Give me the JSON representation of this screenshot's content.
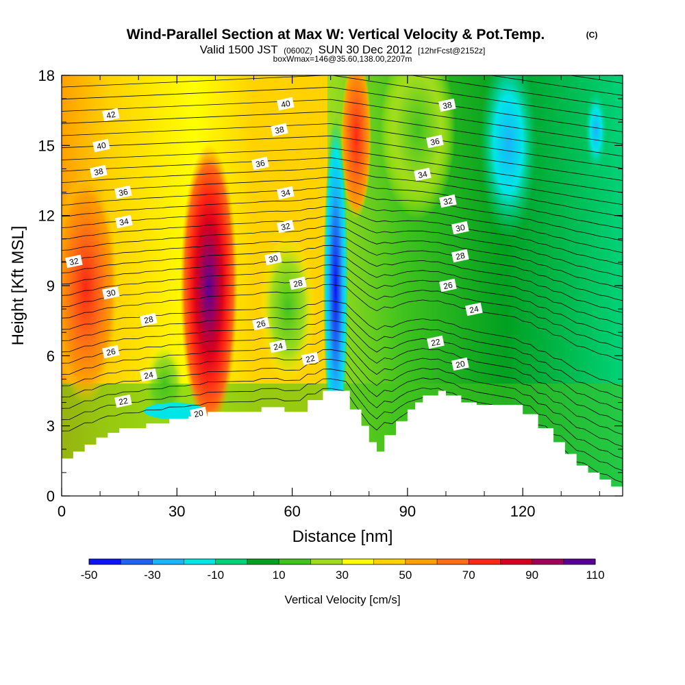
{
  "chart_data": {
    "type": "heatmap",
    "title": "Wind-Parallel Section at Max W: Vertical Velocity & Pot.Temp.",
    "title_tag": "(C)",
    "subtitle_valid": "Valid 1500 JST",
    "subtitle_utc": "(0600Z)",
    "subtitle_date": "SUN 30 Dec 2012",
    "subtitle_fcst": "[12hrFcst@2152z]",
    "subtitle_box": "boxWmax=146@35.60,138.00,2207m",
    "xlabel": "Distance [nm]",
    "ylabel": "Height [Kft MSL]",
    "xlim": [
      0,
      146
    ],
    "ylim": [
      0,
      18
    ],
    "x_ticks": [
      "0",
      "30",
      "60",
      "90",
      "120"
    ],
    "y_ticks": [
      "0",
      "3",
      "6",
      "9",
      "12",
      "15",
      "18"
    ],
    "colorbar": {
      "label": "Vertical Velocity [cm/s]",
      "ticks": [
        "-50",
        "-30",
        "-10",
        "10",
        "30",
        "50",
        "70",
        "90",
        "110"
      ],
      "levels": [
        -50,
        -40,
        -30,
        -20,
        -10,
        0,
        10,
        20,
        30,
        40,
        50,
        60,
        70,
        80,
        90,
        100,
        110
      ],
      "colors": [
        "#0a14f5",
        "#1e64f0",
        "#19b4fa",
        "#00e6e6",
        "#00d278",
        "#00a020",
        "#41c31e",
        "#a0dc1e",
        "#ffff00",
        "#ffd200",
        "#ffa000",
        "#ff6e14",
        "#ff2814",
        "#d7001e",
        "#a0005a",
        "#5a0096"
      ]
    },
    "velocity_features": [
      {
        "feature": "updraft max",
        "x_nm": 38,
        "z_kft": 8.5,
        "w_cms": 110
      },
      {
        "feature": "updraft",
        "x_nm": 6,
        "z_kft": 9,
        "w_cms": 70
      },
      {
        "feature": "downdraft",
        "x_nm": 71,
        "z_kft": 9,
        "w_cms": -50
      },
      {
        "feature": "updraft",
        "x_nm": 76,
        "z_kft": 14,
        "w_cms": 80
      },
      {
        "feature": "downdraft",
        "x_nm": 115,
        "z_kft": 15,
        "w_cms": -30
      }
    ],
    "terrain_kft": {
      "x_nm": [
        0,
        3,
        6,
        9,
        12,
        15,
        22,
        28,
        33,
        38,
        44,
        52,
        56,
        58,
        64,
        68,
        72,
        75,
        78,
        80,
        82,
        84,
        87,
        90,
        92,
        94,
        98,
        100,
        104,
        108,
        112,
        116,
        120,
        124,
        128,
        131,
        134,
        137,
        140,
        143,
        146
      ],
      "z_kft": [
        1.6,
        1.9,
        2.2,
        2.5,
        2.7,
        2.9,
        3.1,
        3.3,
        3.4,
        3.6,
        3.6,
        3.8,
        3.8,
        3.6,
        4.1,
        4.5,
        4.5,
        3.7,
        3.0,
        2.3,
        1.9,
        2.6,
        3.2,
        3.7,
        4.0,
        4.3,
        4.5,
        4.3,
        4.0,
        3.9,
        3.9,
        3.9,
        3.5,
        2.9,
        2.3,
        1.8,
        1.3,
        1.0,
        0.7,
        0.4,
        0.3
      ]
    },
    "theta_contour_labels": [
      "42",
      "40",
      "38",
      "36",
      "34",
      "32",
      "30",
      "28",
      "26",
      "22",
      "24",
      "20",
      "40",
      "38",
      "36",
      "34",
      "32",
      "30",
      "28",
      "26",
      "24",
      "22",
      "38",
      "36",
      "34",
      "32",
      "30",
      "28",
      "26",
      "24",
      "22",
      "20"
    ]
  }
}
